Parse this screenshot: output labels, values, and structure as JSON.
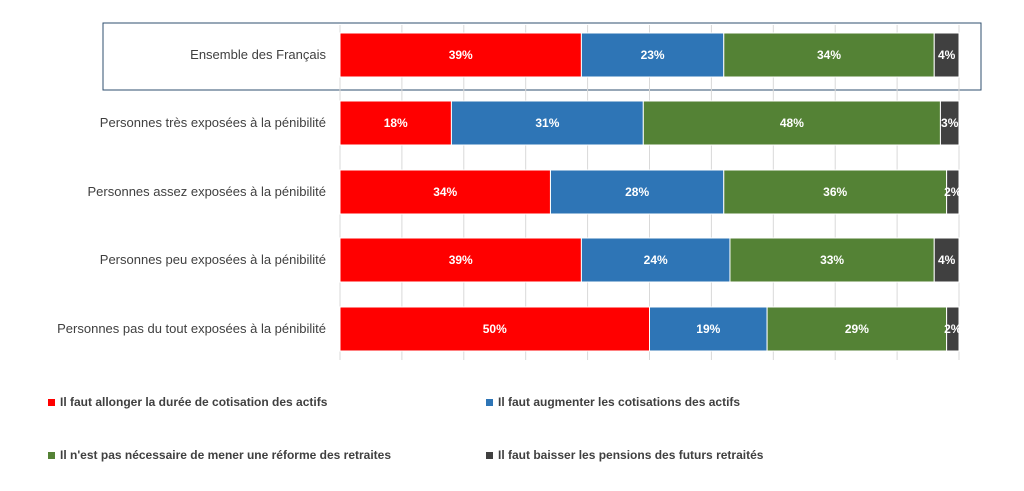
{
  "chart_data": {
    "type": "bar",
    "orientation": "horizontal",
    "stacked": true,
    "normalized_percent": true,
    "categories": [
      "Ensemble des Français",
      "Personnes très exposées à la pénibilité",
      "Personnes assez exposées à la pénibilité",
      "Personnes peu exposées à la pénibilité",
      "Personnes pas du tout exposées à la pénibilité"
    ],
    "series": [
      {
        "name": "Il faut allonger la durée de cotisation des actifs",
        "color": "#ff0000",
        "values": [
          39,
          18,
          34,
          39,
          50
        ]
      },
      {
        "name": "Il faut augmenter les cotisations des actifs",
        "color": "#2e75b6",
        "values": [
          23,
          31,
          28,
          24,
          19
        ]
      },
      {
        "name": "Il n'est pas nécessaire de mener une réforme des retraites",
        "color": "#548235",
        "values": [
          34,
          48,
          36,
          33,
          29
        ]
      },
      {
        "name": "Il faut baisser les pensions des futurs retraités",
        "color": "#404040",
        "values": [
          4,
          3,
          2,
          4,
          2
        ]
      }
    ],
    "value_suffix": "%",
    "xlim": [
      0,
      100
    ],
    "grid": true,
    "highlighted_category": "Ensemble des Français",
    "legend_position": "bottom"
  }
}
